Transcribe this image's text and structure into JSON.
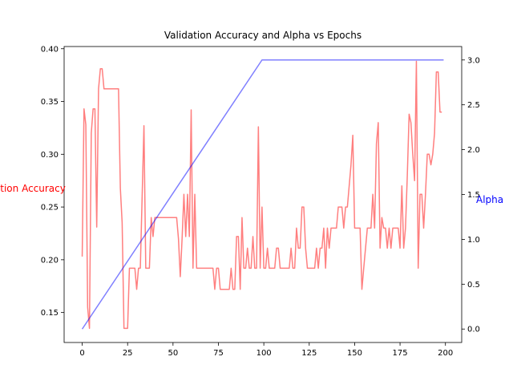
{
  "chart_data": {
    "type": "line",
    "title": "Validation Accuracy and Alpha vs Epochs",
    "xlabel": "",
    "xlim": [
      -9.95,
      208.95
    ],
    "xticks": [
      "0",
      "25",
      "50",
      "75",
      "100",
      "125",
      "150",
      "175",
      "200"
    ],
    "y_left": {
      "label": "Validation Accuracy",
      "label_color": "#ff0000",
      "lim": [
        0.1216,
        0.4021
      ],
      "ticks": [
        "0.15",
        "0.20",
        "0.25",
        "0.30",
        "0.35",
        "0.40"
      ]
    },
    "y_right": {
      "label": "Alpha",
      "label_color": "#0000ff",
      "lim": [
        -0.15,
        3.15
      ],
      "ticks": [
        "0.0",
        "0.5",
        "1.0",
        "1.5",
        "2.0",
        "2.5",
        "3.0"
      ]
    },
    "grid": false,
    "series": [
      {
        "axis": "left",
        "color": "#ff0000",
        "opacity": 0.5,
        "points": [
          [
            0,
            0.203
          ],
          [
            1,
            0.343
          ],
          [
            2,
            0.328
          ],
          [
            3,
            0.155
          ],
          [
            4,
            0.135
          ],
          [
            5,
            0.32
          ],
          [
            6,
            0.343
          ],
          [
            7,
            0.343
          ],
          [
            8,
            0.231
          ],
          [
            9,
            0.362
          ],
          [
            10,
            0.381
          ],
          [
            11,
            0.381
          ],
          [
            12,
            0.362
          ],
          [
            13,
            0.362
          ],
          [
            20,
            0.362
          ],
          [
            21,
            0.268
          ],
          [
            22,
            0.235
          ],
          [
            23,
            0.135
          ],
          [
            25,
            0.135
          ],
          [
            26,
            0.192
          ],
          [
            29,
            0.192
          ],
          [
            30,
            0.172
          ],
          [
            31,
            0.192
          ],
          [
            32,
            0.192
          ],
          [
            34,
            0.327
          ],
          [
            35,
            0.192
          ],
          [
            37,
            0.192
          ],
          [
            38,
            0.24
          ],
          [
            39,
            0.222
          ],
          [
            40,
            0.24
          ],
          [
            52,
            0.24
          ],
          [
            53,
            0.22
          ],
          [
            54,
            0.184
          ],
          [
            55,
            0.22
          ],
          [
            56,
            0.262
          ],
          [
            57,
            0.222
          ],
          [
            58,
            0.262
          ],
          [
            59,
            0.222
          ],
          [
            60,
            0.342
          ],
          [
            61,
            0.192
          ],
          [
            62,
            0.262
          ],
          [
            63,
            0.192
          ],
          [
            72,
            0.192
          ],
          [
            73,
            0.172
          ],
          [
            74,
            0.192
          ],
          [
            75,
            0.192
          ],
          [
            76,
            0.172
          ],
          [
            81,
            0.172
          ],
          [
            82,
            0.192
          ],
          [
            83,
            0.172
          ],
          [
            84,
            0.172
          ],
          [
            85,
            0.222
          ],
          [
            86,
            0.222
          ],
          [
            87,
            0.172
          ],
          [
            88,
            0.24
          ],
          [
            89,
            0.192
          ],
          [
            90,
            0.192
          ],
          [
            91,
            0.211
          ],
          [
            92,
            0.192
          ],
          [
            93,
            0.192
          ],
          [
            94,
            0.222
          ],
          [
            95,
            0.192
          ],
          [
            96,
            0.192
          ],
          [
            97,
            0.326
          ],
          [
            98,
            0.192
          ],
          [
            99,
            0.25
          ],
          [
            100,
            0.192
          ],
          [
            101,
            0.192
          ],
          [
            102,
            0.211
          ],
          [
            103,
            0.192
          ],
          [
            106,
            0.192
          ],
          [
            107,
            0.211
          ],
          [
            108,
            0.211
          ],
          [
            109,
            0.192
          ],
          [
            114,
            0.192
          ],
          [
            115,
            0.211
          ],
          [
            116,
            0.192
          ],
          [
            117,
            0.192
          ],
          [
            118,
            0.23
          ],
          [
            119,
            0.211
          ],
          [
            120,
            0.211
          ],
          [
            121,
            0.25
          ],
          [
            122,
            0.25
          ],
          [
            123,
            0.211
          ],
          [
            124,
            0.192
          ],
          [
            128,
            0.192
          ],
          [
            129,
            0.211
          ],
          [
            130,
            0.192
          ],
          [
            131,
            0.211
          ],
          [
            132,
            0.211
          ],
          [
            133,
            0.23
          ],
          [
            134,
            0.192
          ],
          [
            135,
            0.23
          ],
          [
            136,
            0.211
          ],
          [
            137,
            0.23
          ],
          [
            138,
            0.23
          ],
          [
            139,
            0.23
          ],
          [
            140,
            0.23
          ],
          [
            141,
            0.25
          ],
          [
            142,
            0.25
          ],
          [
            143,
            0.25
          ],
          [
            144,
            0.23
          ],
          [
            145,
            0.25
          ],
          [
            146,
            0.25
          ],
          [
            147,
            0.27
          ],
          [
            148,
            0.29
          ],
          [
            149,
            0.318
          ],
          [
            150,
            0.23
          ],
          [
            151,
            0.23
          ],
          [
            153,
            0.23
          ],
          [
            154,
            0.172
          ],
          [
            155,
            0.192
          ],
          [
            156,
            0.211
          ],
          [
            157,
            0.23
          ],
          [
            158,
            0.23
          ],
          [
            159,
            0.23
          ],
          [
            160,
            0.262
          ],
          [
            161,
            0.23
          ],
          [
            162,
            0.31
          ],
          [
            163,
            0.33
          ],
          [
            164,
            0.211
          ],
          [
            165,
            0.24
          ],
          [
            166,
            0.23
          ],
          [
            167,
            0.23
          ],
          [
            168,
            0.211
          ],
          [
            169,
            0.23
          ],
          [
            170,
            0.211
          ],
          [
            171,
            0.23
          ],
          [
            172,
            0.23
          ],
          [
            173,
            0.23
          ],
          [
            174,
            0.23
          ],
          [
            175,
            0.211
          ],
          [
            176,
            0.27
          ],
          [
            177,
            0.211
          ],
          [
            178,
            0.23
          ],
          [
            179,
            0.28
          ],
          [
            180,
            0.338
          ],
          [
            181,
            0.33
          ],
          [
            182,
            0.3
          ],
          [
            183,
            0.275
          ],
          [
            184,
            0.388
          ],
          [
            185,
            0.192
          ],
          [
            186,
            0.262
          ],
          [
            187,
            0.262
          ],
          [
            188,
            0.23
          ],
          [
            189,
            0.262
          ],
          [
            190,
            0.3
          ],
          [
            191,
            0.3
          ],
          [
            192,
            0.29
          ],
          [
            193,
            0.3
          ],
          [
            194,
            0.32
          ],
          [
            195,
            0.378
          ],
          [
            196,
            0.378
          ],
          [
            197,
            0.34
          ],
          [
            198,
            0.34
          ]
        ]
      },
      {
        "axis": "right",
        "color": "#0000ff",
        "opacity": 0.5,
        "points": [
          [
            0,
            0.0
          ],
          [
            99,
            3.0
          ],
          [
            199,
            3.0
          ]
        ]
      }
    ]
  }
}
